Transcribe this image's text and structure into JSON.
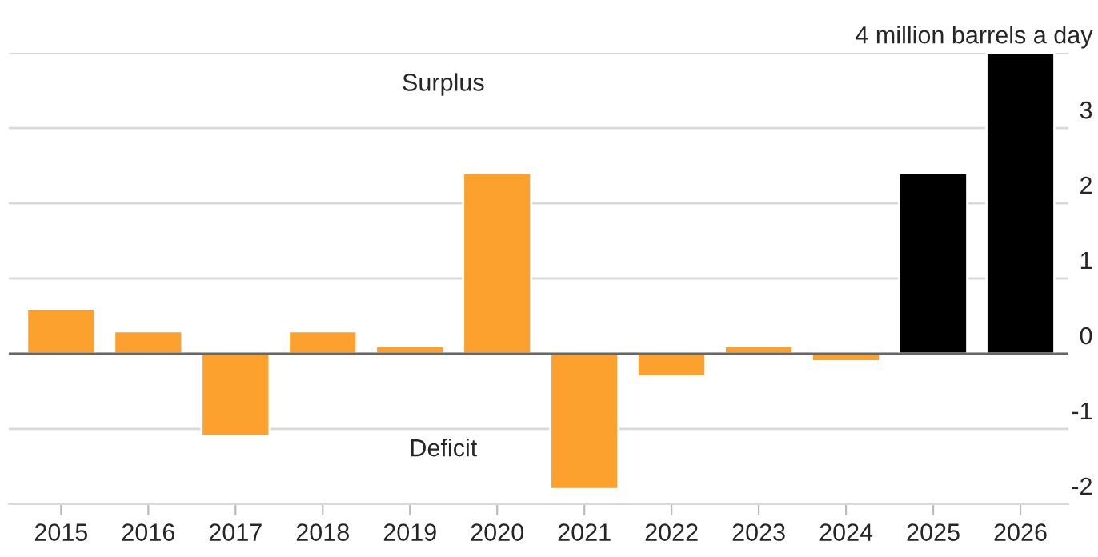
{
  "chart_data": {
    "type": "bar",
    "categories": [
      "2015",
      "2016",
      "2017",
      "2018",
      "2019",
      "2020",
      "2021",
      "2022",
      "2023",
      "2024",
      "2025",
      "2026"
    ],
    "values": [
      0.6,
      0.3,
      -1.1,
      0.3,
      0.1,
      2.4,
      -1.8,
      -0.3,
      0.1,
      -0.1,
      2.4,
      4.0
    ],
    "colors": [
      "#fca12d",
      "#fca12d",
      "#fca12d",
      "#fca12d",
      "#fca12d",
      "#fca12d",
      "#fca12d",
      "#fca12d",
      "#fca12d",
      "#fca12d",
      "#000000",
      "#000000"
    ],
    "ylim": [
      -2,
      4
    ],
    "yticks": [
      -2,
      -1,
      0,
      1,
      2,
      3,
      {
        "value": 4,
        "label": "4 million barrels a day"
      }
    ],
    "grid": "y",
    "ref_lines": [
      {
        "axis": "y",
        "value": 0,
        "color": "#666666"
      }
    ],
    "annotations": [
      "Surplus",
      "Deficit"
    ]
  }
}
